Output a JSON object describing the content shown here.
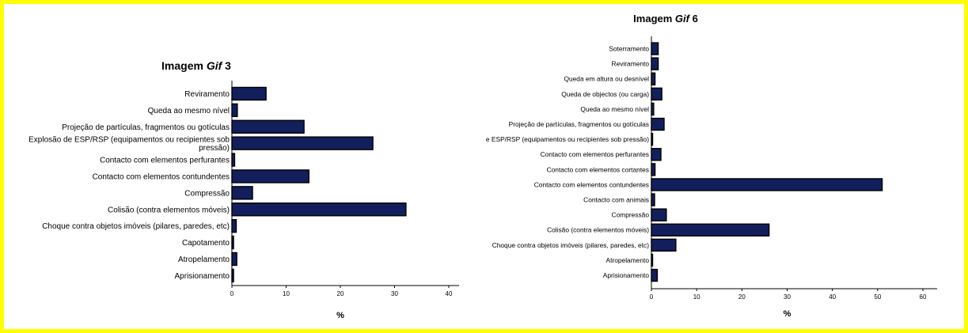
{
  "colors": {
    "border": "#ffff00",
    "bar_fill": "#121f5c",
    "bar_stroke": "#000000"
  },
  "chart_data": [
    {
      "type": "bar",
      "orientation": "horizontal",
      "title_prefix": "Imagem ",
      "title_italic": "Gif",
      "title_suffix": " 3",
      "categories": [
        "Reviramento",
        "Queda ao mesmo nível",
        "Projeção de partículas, fragmentos ou gotículas",
        [
          "Explosão de ESP/RSP (equipamentos ou recipientes sob",
          "pressão)"
        ],
        "Contacto com elementos perfurantes",
        "Contacto com elementos contundentes",
        "Compressão",
        "Colisão (contra elementos móveis)",
        "Choque contra objetos imóveis (pilares, paredes, etc)",
        "Capotamento",
        "Atropelamento",
        "Aprisionamento"
      ],
      "values": [
        6.3,
        1.0,
        13.3,
        26.0,
        0.5,
        14.2,
        3.8,
        32.1,
        0.8,
        0.3,
        0.9,
        0.3
      ],
      "xlim": [
        0,
        40
      ],
      "xticks": [
        "0",
        "10",
        "20",
        "30",
        "40"
      ],
      "xlabel": "%",
      "grid": false
    },
    {
      "type": "bar",
      "orientation": "horizontal",
      "title_prefix": "Imagem ",
      "title_italic": "Gif",
      "title_suffix": " 6",
      "categories": [
        "Soterramento",
        "Reviramento",
        "Queda em altura ou desnível",
        "Queda de objectos (ou carga)",
        "Queda ao mesmo nível",
        "Projeção de partículas, fragmentos ou gotículas",
        "e ESP/RSP (equipamentos ou recipientes sob pressão)",
        "Contacto com elementos perfurantes",
        "Contacto com elementos cortantes",
        "Contacto com elementos contundentes",
        "Contacto com animais",
        "Compressão",
        "Colisão (contra elementos móveis)",
        "Choque contra objetos imóveis (pilares, paredes, etc)",
        "Atropelamento",
        "Aprisionamento"
      ],
      "values": [
        1.5,
        1.5,
        0.8,
        2.3,
        0.5,
        2.8,
        0.2,
        2.1,
        0.8,
        51.0,
        0.7,
        3.3,
        26.0,
        5.4,
        0.2,
        1.3
      ],
      "xlim": [
        0,
        60
      ],
      "xticks": [
        "0",
        "10",
        "20",
        "30",
        "40",
        "50",
        "60"
      ],
      "xlabel": "%",
      "grid": false
    }
  ]
}
